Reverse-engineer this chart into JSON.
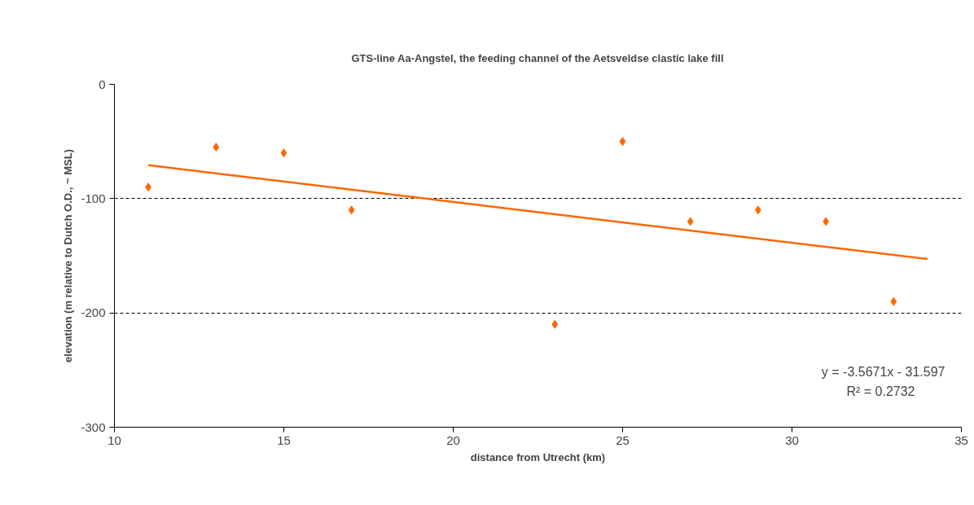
{
  "chart_data": {
    "type": "scatter",
    "title": "GTS-line Aa-Angstel, the feeding channel of the Aetsveldse clastic lake fill",
    "xlabel": "distance from Utrecht (km)",
    "ylabel": "elevation (m relative to Dutch O.D., ~ MSL)",
    "x": [
      11,
      13,
      15,
      17,
      23,
      25,
      27,
      29,
      31,
      33
    ],
    "series": [
      {
        "color": "#ff6600",
        "marker": "diamond",
        "values": [
          -90,
          -55,
          -60,
          -110,
          -210,
          -50,
          -120,
          -110,
          -120,
          -190
        ]
      },
      {
        "type": "line",
        "color": "#ff6600",
        "x": [
          11,
          34
        ],
        "values": [
          -70.8,
          -152.9
        ]
      }
    ],
    "xlim": [
      10,
      35
    ],
    "xticks": [
      10,
      15,
      20,
      25,
      30,
      35
    ],
    "ylim": [
      -300,
      0
    ],
    "yticks": [
      -300,
      -200,
      -100,
      0
    ],
    "grid": "y",
    "annotations": [
      "y = -3.5671x - 31.597",
      "R² = 0.2732"
    ]
  }
}
